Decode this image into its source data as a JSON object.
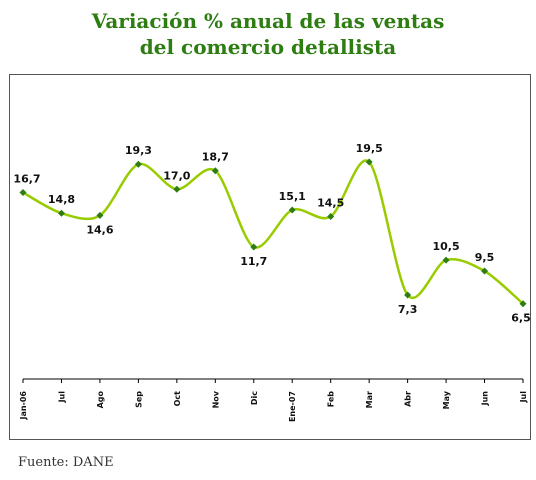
{
  "title_line1": "Variación % anual de las ventas",
  "title_line2": "del comercio detallista",
  "source": "Fuente: DANE",
  "chart_data": {
    "type": "line",
    "title": "Variación % anual de las ventas del comercio detallista",
    "categories": [
      "Jan-06",
      "Jul",
      "Ago",
      "Sep",
      "Oct",
      "Nov",
      "Dic",
      "Ene-07",
      "Feb",
      "Mar",
      "Abr",
      "May",
      "Jun",
      "Jul"
    ],
    "values": [
      16.7,
      14.8,
      14.6,
      19.3,
      17.0,
      18.7,
      11.7,
      15.1,
      14.5,
      19.5,
      7.3,
      10.5,
      9.5,
      6.5
    ],
    "labels": [
      "16,7",
      "14,8",
      "14,6",
      "19,3",
      "17,0",
      "18,7",
      "11,7",
      "15,1",
      "14,5",
      "19,5",
      "7,3",
      "10,5",
      "9,5",
      "6,5"
    ],
    "ylim": [
      -0.5,
      26.2
    ],
    "grid": false,
    "line_color": "#99cc00",
    "marker_color": "#2e7d12"
  }
}
